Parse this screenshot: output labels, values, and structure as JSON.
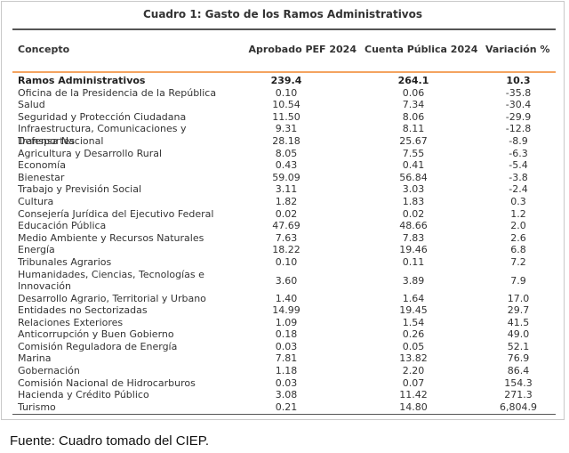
{
  "title": "Cuadro 1: Gasto de los Ramos Administrativos",
  "headers": {
    "concepto": "Concepto",
    "aprobado": "Aprobado PEF 2024",
    "cuenta": "Cuenta Pública 2024",
    "variacion": "Variación %"
  },
  "total": {
    "concepto": "Ramos Administrativos",
    "aprobado": "239.4",
    "cuenta": "264.1",
    "variacion": "10.3"
  },
  "rows": [
    {
      "concepto": "Oficina de la Presidencia de la República",
      "aprobado": "0.10",
      "cuenta": "0.06",
      "variacion": "-35.8"
    },
    {
      "concepto": "Salud",
      "aprobado": "10.54",
      "cuenta": "7.34",
      "variacion": "-30.4"
    },
    {
      "concepto": "Seguridad y Protección Ciudadana",
      "aprobado": "11.50",
      "cuenta": "8.06",
      "variacion": "-29.9"
    },
    {
      "concepto": "Infraestructura, Comunicaciones y Transportes",
      "aprobado": "9.31",
      "cuenta": "8.11",
      "variacion": "-12.8"
    },
    {
      "concepto": "Defensa Nacional",
      "aprobado": "28.18",
      "cuenta": "25.67",
      "variacion": "-8.9"
    },
    {
      "concepto": "Agricultura y Desarrollo Rural",
      "aprobado": "8.05",
      "cuenta": "7.55",
      "variacion": "-6.3"
    },
    {
      "concepto": "Economía",
      "aprobado": "0.43",
      "cuenta": "0.41",
      "variacion": "-5.4"
    },
    {
      "concepto": "Bienestar",
      "aprobado": "59.09",
      "cuenta": "56.84",
      "variacion": "-3.8"
    },
    {
      "concepto": "Trabajo y Previsión Social",
      "aprobado": "3.11",
      "cuenta": "3.03",
      "variacion": "-2.4"
    },
    {
      "concepto": "Cultura",
      "aprobado": "1.82",
      "cuenta": "1.83",
      "variacion": "0.3"
    },
    {
      "concepto": "Consejería Jurídica del Ejecutivo Federal",
      "aprobado": "0.02",
      "cuenta": "0.02",
      "variacion": "1.2"
    },
    {
      "concepto": "Educación Pública",
      "aprobado": "47.69",
      "cuenta": "48.66",
      "variacion": "2.0"
    },
    {
      "concepto": "Medio Ambiente y Recursos Naturales",
      "aprobado": "7.63",
      "cuenta": "7.83",
      "variacion": "2.6"
    },
    {
      "concepto": "Energía",
      "aprobado": "18.22",
      "cuenta": "19.46",
      "variacion": "6.8"
    },
    {
      "concepto": "Tribunales Agrarios",
      "aprobado": "0.10",
      "cuenta": "0.11",
      "variacion": "7.2"
    },
    {
      "concepto": "Humanidades, Ciencias, Tecnologías e Innovación",
      "aprobado": "3.60",
      "cuenta": "3.89",
      "variacion": "7.9",
      "tall": true
    },
    {
      "concepto": "Desarrollo Agrario, Territorial y Urbano",
      "aprobado": "1.40",
      "cuenta": "1.64",
      "variacion": "17.0"
    },
    {
      "concepto": "Entidades no Sectorizadas",
      "aprobado": "14.99",
      "cuenta": "19.45",
      "variacion": "29.7"
    },
    {
      "concepto": "Relaciones Exteriores",
      "aprobado": "1.09",
      "cuenta": "1.54",
      "variacion": "41.5"
    },
    {
      "concepto": "Anticorrupción y Buen Gobierno",
      "aprobado": "0.18",
      "cuenta": "0.26",
      "variacion": "49.0"
    },
    {
      "concepto": "Comisión Reguladora de Energía",
      "aprobado": "0.03",
      "cuenta": "0.05",
      "variacion": "52.1"
    },
    {
      "concepto": "Marina",
      "aprobado": "7.81",
      "cuenta": "13.82",
      "variacion": "76.9"
    },
    {
      "concepto": "Gobernación",
      "aprobado": "1.18",
      "cuenta": "2.20",
      "variacion": "86.4"
    },
    {
      "concepto": "Comisión Nacional de Hidrocarburos",
      "aprobado": "0.03",
      "cuenta": "0.07",
      "variacion": "154.3"
    },
    {
      "concepto": "Hacienda y Crédito Público",
      "aprobado": "3.08",
      "cuenta": "11.42",
      "variacion": "271.3"
    },
    {
      "concepto": "Turismo",
      "aprobado": "0.21",
      "cuenta": "14.80",
      "variacion": "6,804.9"
    }
  ],
  "source": "Fuente: Cuadro tomado del CIEP.",
  "colors": {
    "accent_rule": "#f4a460",
    "rule": "#555555"
  }
}
